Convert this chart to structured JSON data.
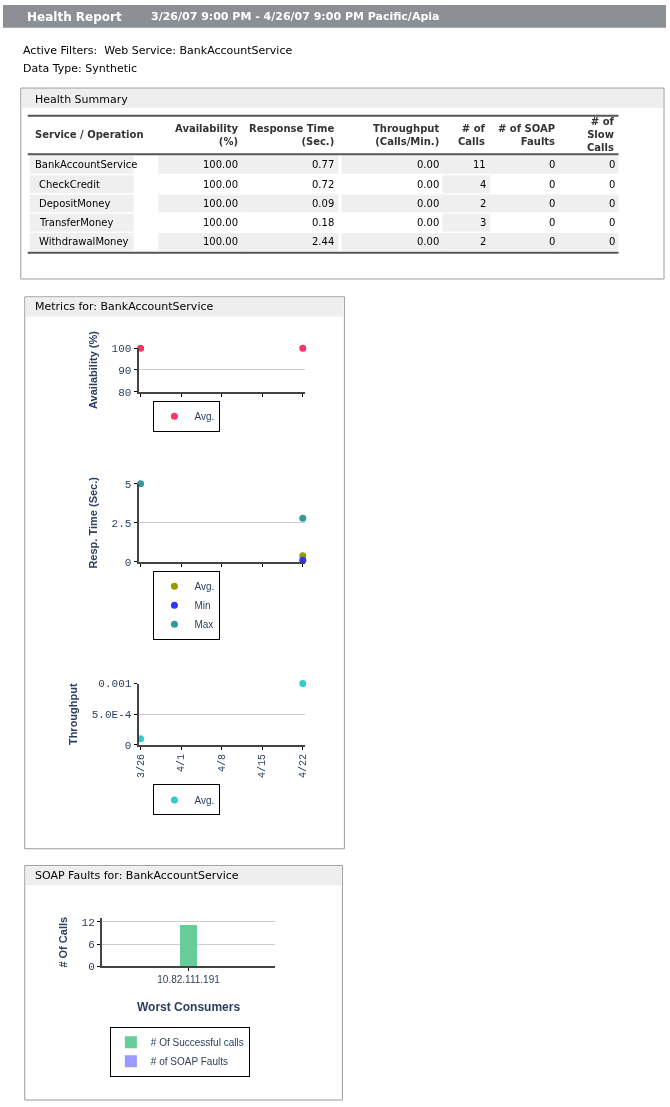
{
  "chart_data": [
    {
      "type": "other",
      "title": "Health Report",
      "subtitle": "3/26/07 9:00 PM - 4/26/07 9:00 PM Pacific/Apia",
      "annotations": [
        "Active Filters:  Web Service: BankAccountService",
        "Data Type: Synthetic",
        "Health Summary",
        "Service / Operation",
        "Availability (%)",
        "Response Time (Sec.)",
        "Throughput (Calls/Min.)",
        "# of Calls",
        "# of SOAP Faults",
        "# of Slow Calls",
        "BankAccountService",
        "100.00",
        "0.77",
        "0.00",
        "11",
        "0",
        "0",
        "CheckCredit",
        "100.00",
        "0.72",
        "0.00",
        "4",
        "0",
        "0",
        "DepositMoney",
        "100.00",
        "0.09",
        "0.00",
        "2",
        "0",
        "0",
        "TransferMoney",
        "100.00",
        "0.18",
        "0.00",
        "3",
        "0",
        "0",
        "WithdrawalMoney",
        "100.00",
        "2.44",
        "0.00",
        "2",
        "0",
        "0"
      ]
    },
    {
      "type": "scatter",
      "title": "Metrics for: BankAccountService",
      "ylabel": "Availability (%)",
      "categories": [
        null,
        null,
        null,
        null,
        null
      ],
      "ylim": [
        80,
        100
      ],
      "yticks": [
        80,
        90,
        100
      ],
      "series": [
        {
          "name": "Avg.",
          "color": "#ff3366",
          "values": [
            100,
            null,
            null,
            null,
            100
          ]
        }
      ],
      "grid": "y",
      "legend": "bottom",
      "marker": "circle"
    },
    {
      "type": "scatter",
      "ylabel": "Resp. Time (Sec.)",
      "categories": [
        null,
        null,
        null,
        null,
        null
      ],
      "ylim": [
        0,
        5
      ],
      "yticks": [
        0,
        2.5,
        5
      ],
      "series": [
        {
          "name": "Avg.",
          "color": "#999900",
          "values": [
            null,
            null,
            null,
            null,
            0.4
          ]
        },
        {
          "name": "Min",
          "color": "#3333ff",
          "values": [
            null,
            null,
            null,
            null,
            0.1
          ]
        },
        {
          "name": "Max",
          "color": "#339999",
          "values": [
            5,
            null,
            null,
            null,
            2.8
          ]
        }
      ],
      "grid": "y",
      "legend": "bottom",
      "marker": "circle"
    },
    {
      "type": "scatter",
      "ylabel": "Throughput",
      "categories": [
        "3/26",
        "4/1",
        "4/8",
        "4/15",
        "4/22"
      ],
      "ylim": [
        0,
        0.001
      ],
      "yticks": [
        0,
        {
          "value": 0.0005,
          "label": "5.0E-4"
        },
        0.001
      ],
      "series": [
        {
          "name": "Avg.",
          "color": "#33cccc",
          "values": [
            0.0001,
            null,
            null,
            null,
            0.001
          ]
        }
      ],
      "grid": "y",
      "legend": "bottom",
      "marker": "circle"
    },
    {
      "type": "bar",
      "title": "SOAP Faults for: BankAccountService",
      "xlabel": "Worst Consumers",
      "ylabel": "# Of Calls",
      "categories": [
        "10.82.111.191"
      ],
      "ylim": [
        0,
        13
      ],
      "yticks": [
        0,
        6,
        12
      ],
      "stacked": true,
      "series": [
        {
          "name": "# Of Successful calls",
          "color": "#66cc99",
          "values": [
            11
          ]
        },
        {
          "name": "# of SOAP Faults",
          "color": "#9999ff",
          "values": [
            0
          ]
        }
      ],
      "grid": "y",
      "legend": "bottom"
    }
  ]
}
